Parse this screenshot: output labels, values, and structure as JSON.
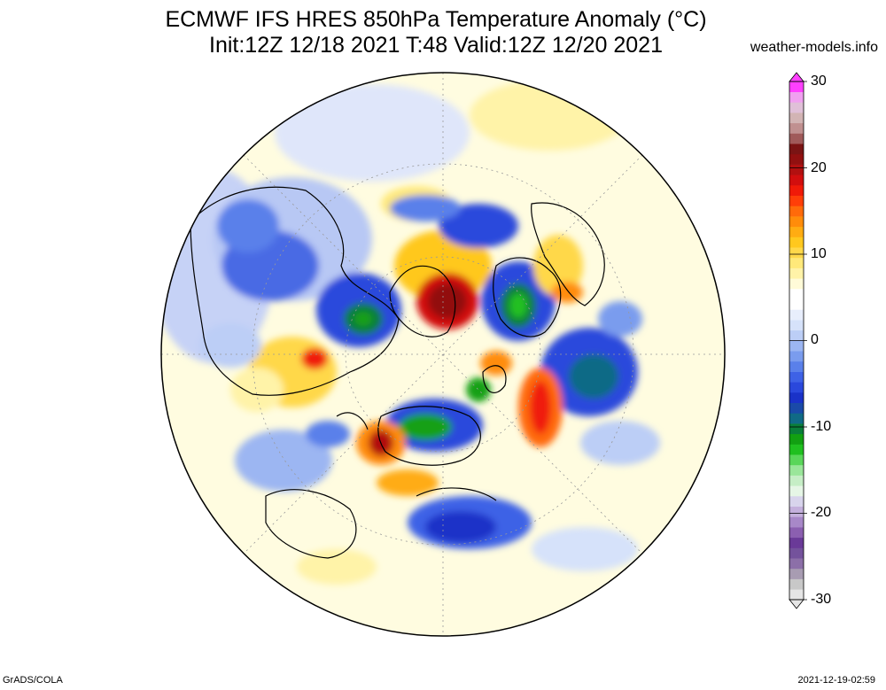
{
  "header": {
    "title_line1": "ECMWF IFS HRES 850hPa Temperature Anomaly (°C)",
    "title_line2": "Init:12Z 12/18 2021 T:48 Valid:12Z 12/20 2021",
    "site": "weather-models.info"
  },
  "footer": {
    "left": "GrADS/COLA",
    "right": "2021-12-19-02:59"
  },
  "colorbar": {
    "ticks": [
      "30",
      "20",
      "10",
      "0",
      "-10",
      "-20",
      "-30"
    ],
    "colors": [
      "#e5e5e5",
      "#c8c8c8",
      "#a89cb2",
      "#8c6fa8",
      "#74529c",
      "#6a3a98",
      "#8b5fb0",
      "#a888c8",
      "#c4b0dc",
      "#d8d4ec",
      "#e6f6e6",
      "#c6eec6",
      "#9ae69a",
      "#5ad65a",
      "#20c020",
      "#12a012",
      "#0a7e3a",
      "#106a86",
      "#1a4aa8",
      "#1a32c8",
      "#2a48dc",
      "#3e62e6",
      "#5a80ea",
      "#7a9cee",
      "#9cb6f2",
      "#bccef6",
      "#d6e2fa",
      "#e8eefc",
      "#ffffff",
      "#ffffff",
      "#fffbd8",
      "#fff3a8",
      "#ffe97a",
      "#ffd84a",
      "#ffc81e",
      "#ffac12",
      "#ff8c0a",
      "#ff6a0a",
      "#ff3e08",
      "#f01a08",
      "#d20e0e",
      "#b21010",
      "#921010",
      "#7a1414",
      "#a05a5a",
      "#c09090",
      "#d2b4b4",
      "#e0c0d8",
      "#f0a0f0",
      "#ff40ff"
    ]
  },
  "map": {
    "projection": "north-polar-stereographic",
    "region": "Northern Hemisphere",
    "land_outline_color": "#000000",
    "background_anomaly_color": "#fffbd8"
  }
}
